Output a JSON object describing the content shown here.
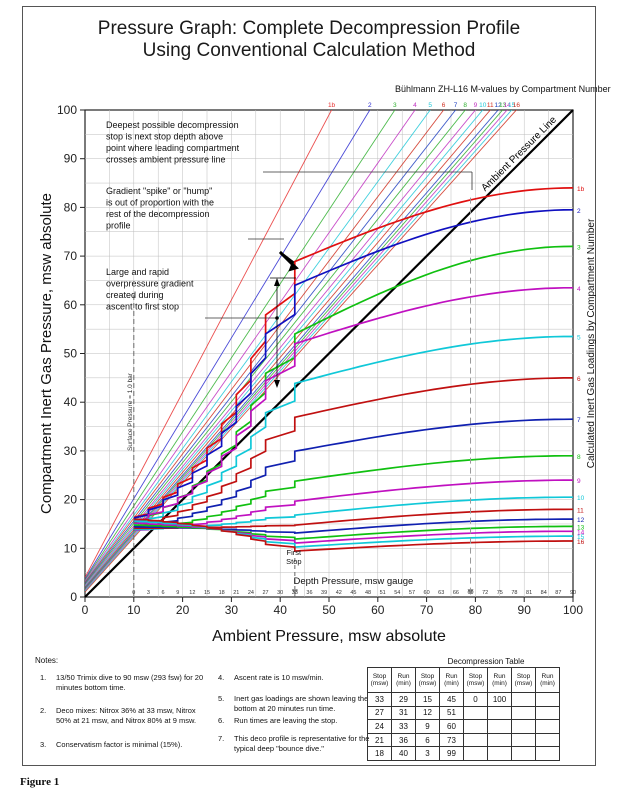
{
  "title": {
    "line1": "Pressure Graph:  Complete Decompression Profile",
    "line2": "Using Conventional Calculation Method"
  },
  "figure_label": "Figure 1",
  "chart_data": {
    "type": "line",
    "title": "Pressure Graph:  Complete Decompression Profile Using Conventional Calculation Method",
    "subtitle": "Bühlmann ZH-L16 M-values by Compartment Number",
    "xlabel": "Ambient Pressure, msw absolute",
    "ylabel": "Compartment Inert Gas Pressure, msw absolute",
    "right_label": "Calculated Inert Gas Loadings by Compartment Number",
    "secondary_xlabel": "Depth Pressure, msw gauge",
    "xlim": [
      0,
      100
    ],
    "ylim": [
      0,
      100
    ],
    "x_ticks": [
      0,
      10,
      20,
      30,
      40,
      50,
      60,
      70,
      80,
      90,
      100
    ],
    "y_ticks": [
      0,
      10,
      20,
      30,
      40,
      50,
      60,
      70,
      80,
      90,
      100
    ],
    "gauge_ticks": [
      "0",
      "3",
      "6",
      "9",
      "12",
      "15",
      "18",
      "21",
      "24",
      "27",
      "30",
      "33",
      "36",
      "39",
      "42",
      "45",
      "48",
      "51",
      "54",
      "57",
      "60",
      "63",
      "66",
      "69",
      "72",
      "75",
      "78",
      "81",
      "84",
      "87",
      "90"
    ],
    "grid": true,
    "ambient_line_label": "Ambient Pressure Line",
    "surface_pressure_label": "Surface Pressure = 1.0 bar",
    "first_stop_label": "First Stop",
    "surface_x": 10,
    "first_stop_x": 43,
    "bottom_x": 100,
    "mvalue_lines": [
      {
        "label": "1b",
        "color": "#e83030",
        "intercept": 4.0,
        "slope": 1.9
      },
      {
        "label": "2",
        "color": "#2a2ad0",
        "intercept": 3.7,
        "slope": 1.65
      },
      {
        "label": "3",
        "color": "#30b030",
        "intercept": 3.5,
        "slope": 1.52
      },
      {
        "label": "4",
        "color": "#c030c0",
        "intercept": 3.3,
        "slope": 1.43
      },
      {
        "label": "5",
        "color": "#20c8d8",
        "intercept": 3.1,
        "slope": 1.37
      },
      {
        "label": "6",
        "color": "#d03020",
        "intercept": 3.0,
        "slope": 1.32
      },
      {
        "label": "7",
        "color": "#2040c0",
        "intercept": 2.8,
        "slope": 1.28
      },
      {
        "label": "8",
        "color": "#30b030",
        "intercept": 2.6,
        "slope": 1.25
      },
      {
        "label": "9",
        "color": "#c030c0",
        "intercept": 2.4,
        "slope": 1.22
      },
      {
        "label": "10",
        "color": "#20c8d8",
        "intercept": 2.2,
        "slope": 1.2
      },
      {
        "label": "11",
        "color": "#d03020",
        "intercept": 2.0,
        "slope": 1.18
      },
      {
        "label": "12",
        "color": "#2040c0",
        "intercept": 1.8,
        "slope": 1.16
      },
      {
        "label": "13",
        "color": "#30b030",
        "intercept": 1.6,
        "slope": 1.15
      },
      {
        "label": "14",
        "color": "#c030c0",
        "intercept": 1.4,
        "slope": 1.14
      },
      {
        "label": "15",
        "color": "#20c8d8",
        "intercept": 1.2,
        "slope": 1.13
      },
      {
        "label": "16",
        "color": "#d03020",
        "intercept": 1.0,
        "slope": 1.12
      }
    ],
    "compartments": [
      {
        "label": "1b",
        "color": "#e01010",
        "bottom": 84,
        "s": 65
      },
      {
        "label": "2",
        "color": "#1010c0",
        "bottom": 79.5,
        "s": 60
      },
      {
        "label": "3",
        "color": "#10c010",
        "bottom": 72,
        "s": 50
      },
      {
        "label": "4",
        "color": "#c010c0",
        "bottom": 63.5,
        "s": 48
      },
      {
        "label": "5",
        "color": "#10c8d8",
        "bottom": 53.5,
        "s": 44
      },
      {
        "label": "6",
        "color": "#c01010",
        "bottom": 45,
        "s": 40
      },
      {
        "label": "7",
        "color": "#1020b0",
        "bottom": 36.5,
        "s": 36
      },
      {
        "label": "8",
        "color": "#10c010",
        "bottom": 29,
        "s": 32
      },
      {
        "label": "9",
        "color": "#c010c0",
        "bottom": 24,
        "s": 28
      },
      {
        "label": "10",
        "color": "#10c8d8",
        "bottom": 20.5,
        "s": 24
      },
      {
        "label": "11",
        "color": "#c01010",
        "bottom": 18,
        "s": 20
      },
      {
        "label": "12",
        "color": "#1020b0",
        "bottom": 16,
        "s": 16
      },
      {
        "label": "13",
        "color": "#10c010",
        "bottom": 14.5,
        "s": 14
      },
      {
        "label": "14",
        "color": "#c010c0",
        "bottom": 13.5,
        "s": 12
      },
      {
        "label": "15",
        "color": "#10c8d8",
        "bottom": 12.5,
        "s": 10
      },
      {
        "label": "16",
        "color": "#c01010",
        "bottom": 11.5,
        "s": 8
      }
    ],
    "annotations": {
      "a1": [
        "Deepest possible decompression",
        "stop is next stop depth above",
        "point where leading compartment",
        "crosses ambient pressure line"
      ],
      "a2": [
        "Gradient \"spike\" or \"hump\"",
        "is out of proportion with the",
        "rest of the decompression",
        "profile"
      ],
      "a3": [
        "Large and rapid",
        "overpressure gradient",
        "created during",
        "ascent to first stop"
      ]
    }
  },
  "notes": {
    "heading": "Notes:",
    "items": [
      {
        "num": "1.",
        "text": "13/50 Trimix dive to 90 msw (293 fsw) for 20 minutes bottom time."
      },
      {
        "num": "2.",
        "text": "Deco mixes:  Nitrox 36% at 33 msw, Nitrox 50% at 21 msw, and Nitrox 80% at 9 msw."
      },
      {
        "num": "3.",
        "text": "Conservatism factor is minimal (15%)."
      },
      {
        "num": "4.",
        "text": "Ascent rate is 10 msw/min."
      },
      {
        "num": "5.",
        "text": "Inert gas loadings are shown leaving the bottom at 20 minutes run time."
      },
      {
        "num": "6.",
        "text": "Run times are leaving the stop."
      },
      {
        "num": "7.",
        "text": "This deco profile is representative for the typical deep \"bounce dive.\""
      }
    ]
  },
  "deco_table": {
    "title": "Decompression Table",
    "headers": [
      "Stop (msw)",
      "Run (min)",
      "Stop (msw)",
      "Run (min)",
      "Stop (msw)",
      "Run (min)",
      "Stop (msw)",
      "Run (min)"
    ],
    "rows": [
      [
        "33",
        "29",
        "15",
        "45",
        "0",
        "100",
        "",
        ""
      ],
      [
        "27",
        "31",
        "12",
        "51",
        "",
        "",
        "",
        ""
      ],
      [
        "24",
        "33",
        "9",
        "60",
        "",
        "",
        "",
        ""
      ],
      [
        "21",
        "36",
        "6",
        "73",
        "",
        "",
        "",
        ""
      ],
      [
        "18",
        "40",
        "3",
        "99",
        "",
        "",
        "",
        ""
      ]
    ]
  }
}
